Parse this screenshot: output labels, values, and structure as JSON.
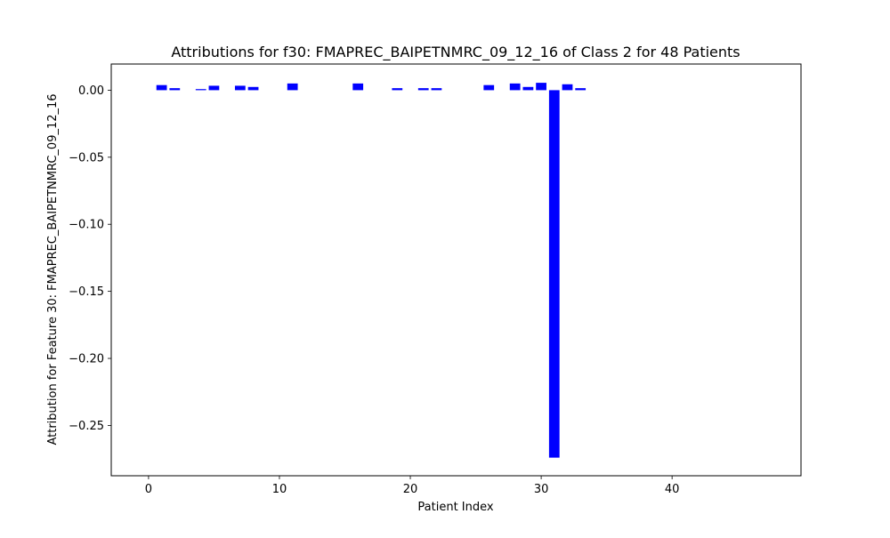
{
  "chart_data": {
    "type": "bar",
    "title": "Attributions for f30: FMAPREC_BAIPETNMRC_09_12_16 of Class 2 for 48 Patients",
    "xlabel": "Patient Index",
    "ylabel": "Attribution for Feature 30: FMAPREC_BAIPETNMRC_09_12_16",
    "xlim": [
      -2.85,
      49.85
    ],
    "ylim": [
      -0.2875,
      0.0195
    ],
    "xticks": [
      0,
      10,
      20,
      30,
      40
    ],
    "xtick_labels": [
      "0",
      "10",
      "20",
      "30",
      "40"
    ],
    "yticks": [
      0.0,
      -0.05,
      -0.1,
      -0.15,
      -0.2,
      -0.25
    ],
    "ytick_labels": [
      "0.00",
      "−0.05",
      "−0.10",
      "−0.15",
      "−0.20",
      "−0.25"
    ],
    "bar_color": "#0000ff",
    "grid": false,
    "x": [
      0,
      1,
      2,
      3,
      4,
      5,
      6,
      7,
      8,
      9,
      10,
      11,
      12,
      13,
      14,
      15,
      16,
      17,
      18,
      19,
      20,
      21,
      22,
      23,
      24,
      25,
      26,
      27,
      28,
      29,
      30,
      31,
      32,
      33,
      34,
      35,
      36,
      37,
      38,
      39,
      40,
      41,
      42,
      43,
      44,
      45,
      46,
      47
    ],
    "values": [
      0,
      0.0038,
      0.0015,
      0,
      0.0008,
      0.0033,
      0,
      0.0033,
      0.0024,
      0,
      0,
      0.005,
      0,
      0,
      0,
      0,
      0.005,
      0,
      0,
      0.0015,
      0,
      0.0015,
      0.0015,
      0,
      0,
      0,
      0.0038,
      0,
      0.005,
      0.0024,
      0.0055,
      -0.274,
      0.0044,
      0.0015,
      0,
      0,
      0,
      0,
      0,
      0,
      0,
      0,
      0,
      0,
      0,
      0,
      0,
      0
    ]
  }
}
